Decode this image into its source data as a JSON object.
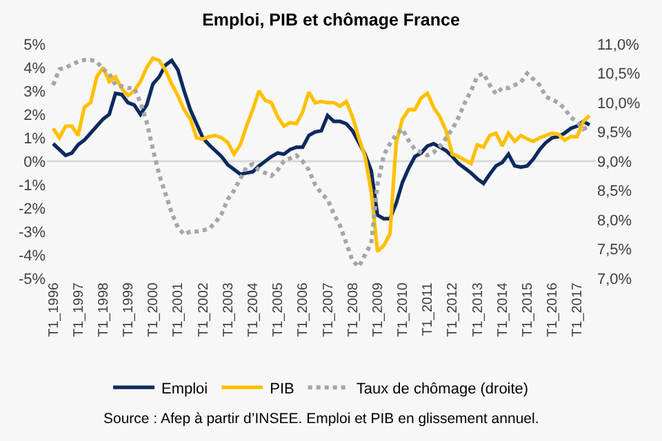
{
  "chart_data": {
    "type": "line",
    "title": "Emploi, PIB et chômage France",
    "categories": [
      "T1_1996",
      null,
      null,
      null,
      "T1_1997",
      null,
      null,
      null,
      "T1_1998",
      null,
      null,
      null,
      "T1_1999",
      null,
      null,
      null,
      "T1_2000",
      null,
      null,
      null,
      "T1_2001",
      null,
      null,
      null,
      "T1_2002",
      null,
      null,
      null,
      "T1_2003",
      null,
      null,
      null,
      "T1_2004",
      null,
      null,
      null,
      "T1_2005",
      null,
      null,
      null,
      "T1_2006",
      null,
      null,
      null,
      "T1_2007",
      null,
      null,
      null,
      "T1_2008",
      null,
      null,
      null,
      "T1_2009",
      null,
      null,
      null,
      "T1_2010",
      null,
      null,
      null,
      "T1_2011",
      null,
      null,
      null,
      "T1_2012",
      null,
      null,
      null,
      "T1_2013",
      null,
      null,
      null,
      "T1_2014",
      null,
      null,
      null,
      "T1_2015",
      null,
      null,
      null,
      "T1_2016",
      null,
      null,
      null,
      "T1_2017",
      null,
      null
    ],
    "series": [
      {
        "name": "Emploi",
        "color": "#0d2a5e",
        "line_style": "solid",
        "values": [
          0.75,
          0.5,
          0.25,
          0.35,
          0.7,
          0.9,
          1.2,
          1.5,
          1.8,
          2.0,
          2.9,
          2.85,
          2.5,
          2.4,
          2.0,
          2.4,
          3.3,
          3.6,
          4.1,
          4.3,
          3.9,
          3.0,
          2.2,
          1.6,
          1.0,
          0.7,
          0.45,
          0.2,
          -0.15,
          -0.35,
          -0.55,
          -0.5,
          -0.45,
          -0.2,
          0.0,
          0.2,
          0.35,
          0.3,
          0.5,
          0.6,
          0.6,
          1.1,
          1.25,
          1.3,
          1.95,
          1.7,
          1.7,
          1.6,
          1.3,
          0.8,
          0.3,
          -0.4,
          -2.3,
          -2.45,
          -2.45,
          -1.8,
          -0.9,
          -0.3,
          0.2,
          0.35,
          0.65,
          0.75,
          0.6,
          0.45,
          0.2,
          -0.1,
          -0.3,
          -0.5,
          -0.75,
          -0.95,
          -0.55,
          -0.2,
          -0.05,
          0.3,
          -0.2,
          -0.25,
          -0.2,
          0.1,
          0.5,
          0.8,
          1.0,
          1.05,
          1.2,
          1.4,
          1.5,
          1.7,
          1.55
        ]
      },
      {
        "name": "PIB",
        "color": "#ffc000",
        "line_style": "solid",
        "values": [
          1.4,
          1.0,
          1.5,
          1.5,
          1.1,
          2.3,
          2.5,
          3.6,
          4.0,
          3.4,
          3.6,
          3.1,
          2.8,
          3.0,
          3.4,
          4.0,
          4.4,
          4.3,
          3.9,
          3.3,
          2.8,
          2.2,
          1.8,
          1.0,
          0.95,
          1.05,
          1.1,
          1.0,
          0.8,
          0.3,
          0.7,
          1.5,
          2.2,
          3.0,
          2.6,
          2.5,
          1.9,
          1.5,
          1.65,
          1.6,
          2.1,
          2.95,
          2.5,
          2.55,
          2.5,
          2.5,
          2.35,
          2.55,
          1.9,
          1.0,
          0.2,
          -1.3,
          -3.85,
          -3.6,
          -3.1,
          0.8,
          1.8,
          2.2,
          2.2,
          2.7,
          2.9,
          2.3,
          1.9,
          1.3,
          0.3,
          0.2,
          0.05,
          -0.1,
          0.7,
          0.6,
          1.1,
          1.2,
          0.65,
          1.2,
          0.85,
          1.1,
          0.95,
          0.85,
          1.0,
          1.1,
          1.2,
          1.15,
          0.9,
          1.05,
          1.05,
          1.7,
          1.95
        ]
      },
      {
        "name": "Taux de chômage (droite)",
        "color": "#a6a6a6",
        "line_style": "dotted",
        "axis": "y2",
        "values": [
          10.3,
          10.57,
          10.6,
          10.65,
          10.7,
          10.73,
          10.73,
          10.7,
          10.57,
          10.5,
          10.3,
          10.28,
          10.25,
          10.25,
          10.0,
          9.67,
          9.2,
          8.77,
          8.45,
          8.12,
          7.87,
          7.75,
          7.8,
          7.8,
          7.82,
          7.85,
          7.95,
          8.1,
          8.35,
          8.5,
          8.7,
          8.9,
          8.95,
          8.85,
          8.8,
          8.75,
          8.85,
          9.0,
          9.05,
          9.1,
          9.0,
          8.85,
          8.6,
          8.45,
          8.35,
          8.1,
          7.9,
          7.6,
          7.3,
          7.2,
          7.4,
          7.6,
          8.6,
          9.1,
          9.3,
          9.45,
          9.55,
          9.35,
          9.2,
          9.15,
          9.1,
          9.15,
          9.25,
          9.4,
          9.55,
          9.75,
          10.0,
          10.2,
          10.45,
          10.5,
          10.3,
          10.15,
          10.25,
          10.25,
          10.3,
          10.35,
          10.5,
          10.4,
          10.3,
          10.1,
          10.05,
          10.0,
          9.9,
          9.75,
          9.67,
          9.55,
          9.6
        ]
      }
    ],
    "ylim": [
      -5,
      5
    ],
    "yticks": [
      {
        "value": -5,
        "label": "-5%"
      },
      {
        "value": -4,
        "label": "-4%"
      },
      {
        "value": -3,
        "label": "-3%"
      },
      {
        "value": -2,
        "label": "-2%"
      },
      {
        "value": -1,
        "label": "-1%"
      },
      {
        "value": 0,
        "label": "0%"
      },
      {
        "value": 1,
        "label": "1%"
      },
      {
        "value": 2,
        "label": "2%"
      },
      {
        "value": 3,
        "label": "3%"
      },
      {
        "value": 4,
        "label": "4%"
      },
      {
        "value": 5,
        "label": "5%"
      }
    ],
    "y2lim": [
      7,
      11
    ],
    "y2ticks": [
      {
        "value": 7,
        "label": "7,0%"
      },
      {
        "value": 7.5,
        "label": "7,5%"
      },
      {
        "value": 8,
        "label": "8,0%"
      },
      {
        "value": 8.5,
        "label": "8,5%"
      },
      {
        "value": 9,
        "label": "9,0%"
      },
      {
        "value": 9.5,
        "label": "9,5%"
      },
      {
        "value": 10,
        "label": "10,0%"
      },
      {
        "value": 10.5,
        "label": "10,5%"
      },
      {
        "value": 11,
        "label": "11,0%"
      }
    ],
    "ref_lines": [
      {
        "axis": "y",
        "value": 0,
        "color": "#d9d9d9"
      }
    ],
    "grid": false,
    "legend": "bottom",
    "marker": "none",
    "annotations": [
      "Source : Afep à partir d’INSEE. Emploi et PIB en glissement annuel."
    ]
  }
}
